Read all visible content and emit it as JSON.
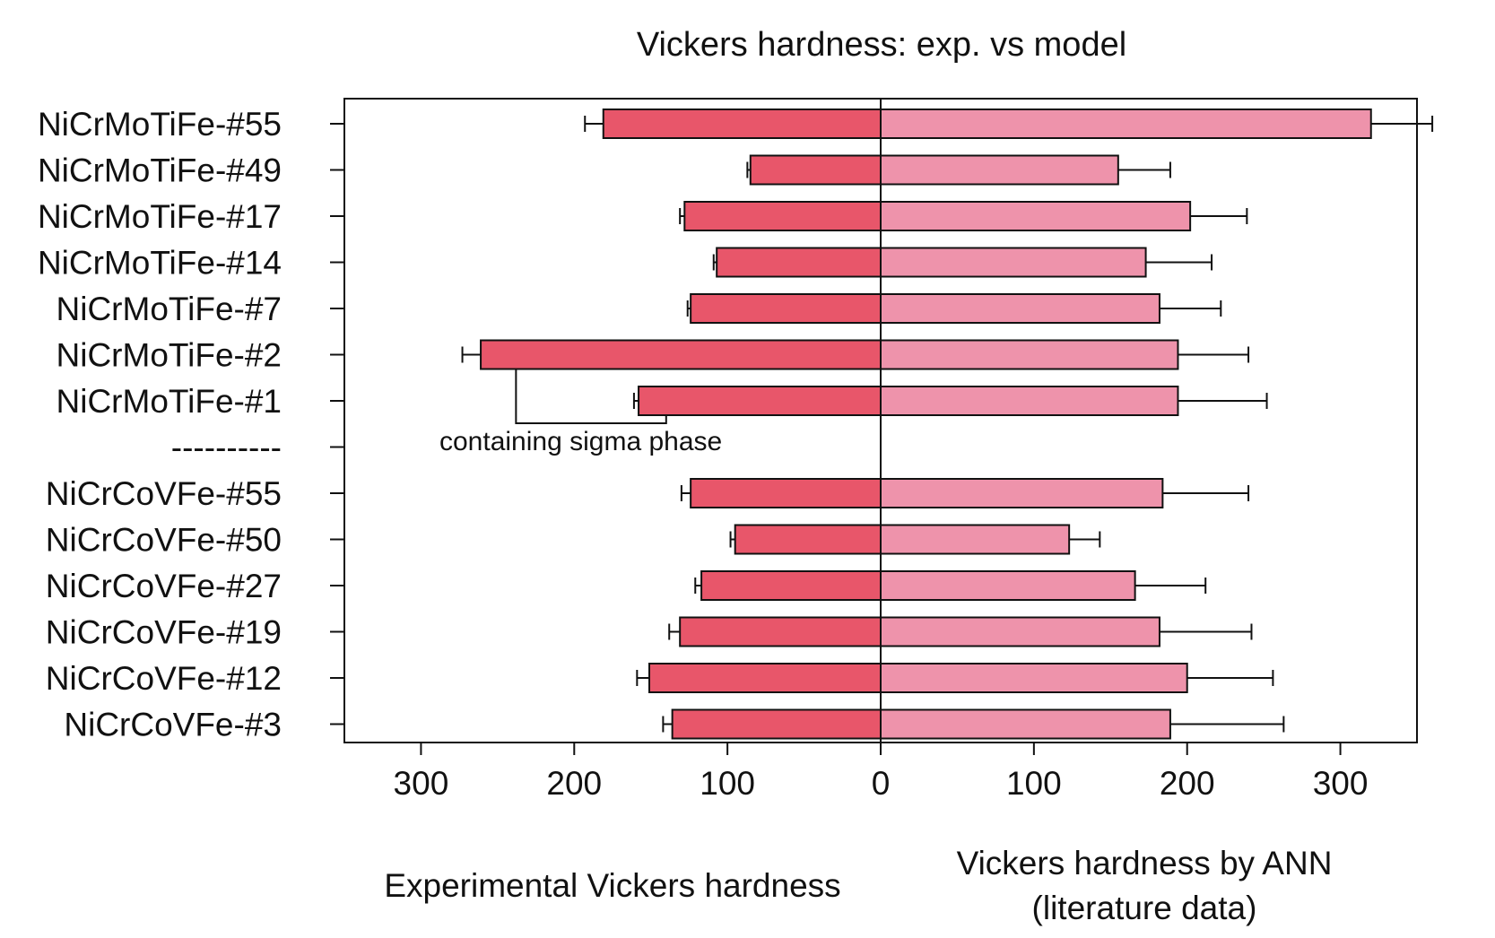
{
  "chart_data": {
    "type": "bar",
    "orientation": "horizontal",
    "title": "Vickers hardness: exp. vs model",
    "categories": [
      "NiCrMoTiFe-#55",
      "NiCrMoTiFe-#49",
      "NiCrMoTiFe-#17",
      "NiCrMoTiFe-#14",
      "NiCrMoTiFe-#7",
      "NiCrMoTiFe-#2",
      "NiCrMoTiFe-#1",
      "----------",
      "NiCrCoVFe-#55",
      "NiCrCoVFe-#50",
      "NiCrCoVFe-#27",
      "NiCrCoVFe-#19",
      "NiCrCoVFe-#12",
      "NiCrCoVFe-#3"
    ],
    "series": [
      {
        "side": "left",
        "values": [
          181,
          85,
          128,
          107,
          124,
          261,
          158,
          null,
          124,
          95,
          117,
          131,
          151,
          136
        ],
        "errors": [
          12,
          2,
          3,
          2,
          2,
          12,
          3,
          null,
          6,
          3,
          4,
          7,
          8,
          6
        ],
        "color": "#e8566a"
      },
      {
        "side": "right",
        "values": [
          320,
          155,
          202,
          173,
          182,
          194,
          194,
          null,
          184,
          123,
          166,
          182,
          200,
          189
        ],
        "errors": [
          40,
          34,
          37,
          43,
          40,
          46,
          58,
          null,
          56,
          20,
          46,
          60,
          56,
          74
        ],
        "color": "#ee93ab"
      }
    ],
    "xlim": [
      -350,
      350
    ],
    "x_ticks": [
      {
        "value": -300,
        "label": "300"
      },
      {
        "value": -200,
        "label": "200"
      },
      {
        "value": -100,
        "label": "100"
      },
      {
        "value": 0,
        "label": "0"
      },
      {
        "value": 100,
        "label": "100"
      },
      {
        "value": 200,
        "label": "200"
      },
      {
        "value": 300,
        "label": "300"
      }
    ],
    "xlabel_left": "Experimental Vickers hardness",
    "xlabel_right": [
      "Vickers hardness by ANN",
      "(literature data)"
    ],
    "annotation": {
      "text": "containing sigma phase",
      "points_to": [
        "NiCrMoTiFe-#2",
        "NiCrMoTiFe-#1"
      ]
    },
    "grid": false,
    "legend": "none"
  }
}
